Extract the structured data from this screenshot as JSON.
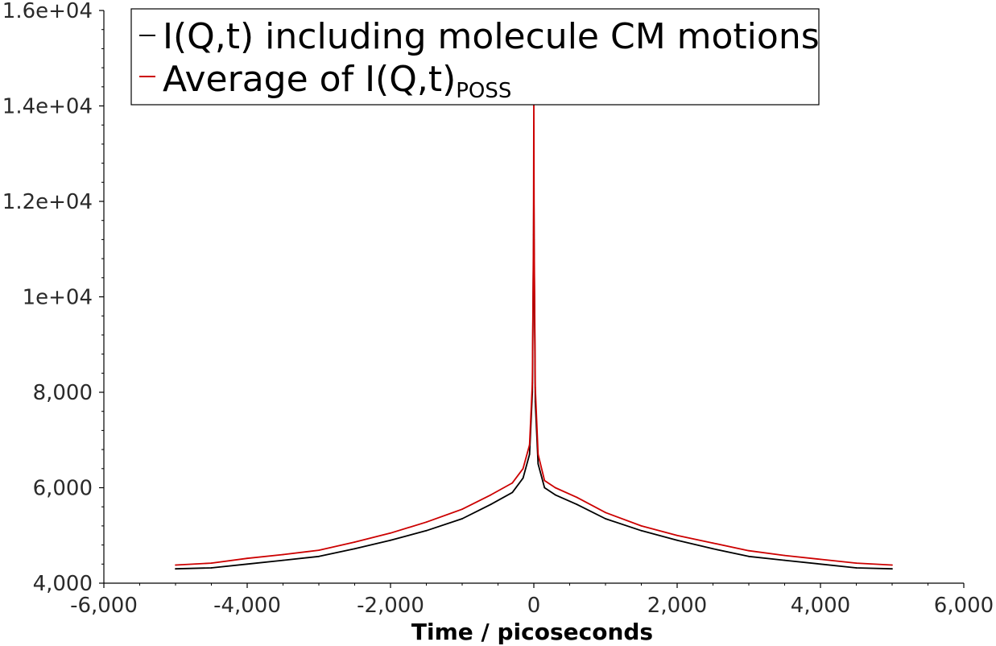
{
  "chart_data": {
    "type": "line",
    "title": "",
    "xlabel": "Time / picoseconds",
    "ylabel": "",
    "xlim": [
      -6000,
      6000
    ],
    "ylim": [
      4000,
      16000
    ],
    "x_ticks": [
      -6000,
      -4000,
      -2000,
      0,
      2000,
      4000,
      6000
    ],
    "x_tick_labels": [
      "-6,000",
      "-4,000",
      "-2,000",
      "0",
      "2,000",
      "4,000",
      "6,000"
    ],
    "y_ticks": [
      4000,
      6000,
      8000,
      10000,
      12000,
      14000,
      16000
    ],
    "y_tick_labels": [
      "4,000",
      "6,000",
      "8,000",
      "1e+04",
      "1.2e+04",
      "1.4e+04",
      "1.6e+04"
    ],
    "grid": false,
    "legend_position": "top-left",
    "series": [
      {
        "name": "I(Q,t) including molecule CM motions",
        "color": "#000000",
        "x": [
          -5000,
          -4500,
          -4000,
          -3500,
          -3000,
          -2500,
          -2000,
          -1500,
          -1000,
          -600,
          -300,
          -150,
          -60,
          -20,
          -5,
          0,
          5,
          20,
          60,
          150,
          300,
          600,
          1000,
          1500,
          2000,
          2500,
          3000,
          3500,
          4000,
          4500,
          5000
        ],
        "y": [
          4300,
          4320,
          4400,
          4480,
          4560,
          4720,
          4900,
          5100,
          5350,
          5650,
          5900,
          6200,
          6700,
          8000,
          11000,
          12300,
          10900,
          7800,
          6500,
          6000,
          5850,
          5650,
          5350,
          5100,
          4900,
          4720,
          4560,
          4480,
          4400,
          4320,
          4300
        ]
      },
      {
        "name": "Average of I(Q,t)",
        "name_subscript": "POSS",
        "color": "#cc0000",
        "x": [
          -5000,
          -4500,
          -4000,
          -3500,
          -3000,
          -2500,
          -2000,
          -1500,
          -1000,
          -600,
          -300,
          -150,
          -60,
          -20,
          -5,
          0,
          5,
          20,
          60,
          150,
          300,
          600,
          1000,
          1500,
          2000,
          2500,
          3000,
          3500,
          4000,
          4500,
          5000
        ],
        "y": [
          4380,
          4420,
          4520,
          4600,
          4690,
          4860,
          5050,
          5280,
          5550,
          5850,
          6100,
          6400,
          6900,
          8200,
          11300,
          14200,
          11200,
          8100,
          6700,
          6150,
          6000,
          5800,
          5480,
          5200,
          5000,
          4840,
          4680,
          4580,
          4500,
          4420,
          4380
        ]
      }
    ]
  }
}
